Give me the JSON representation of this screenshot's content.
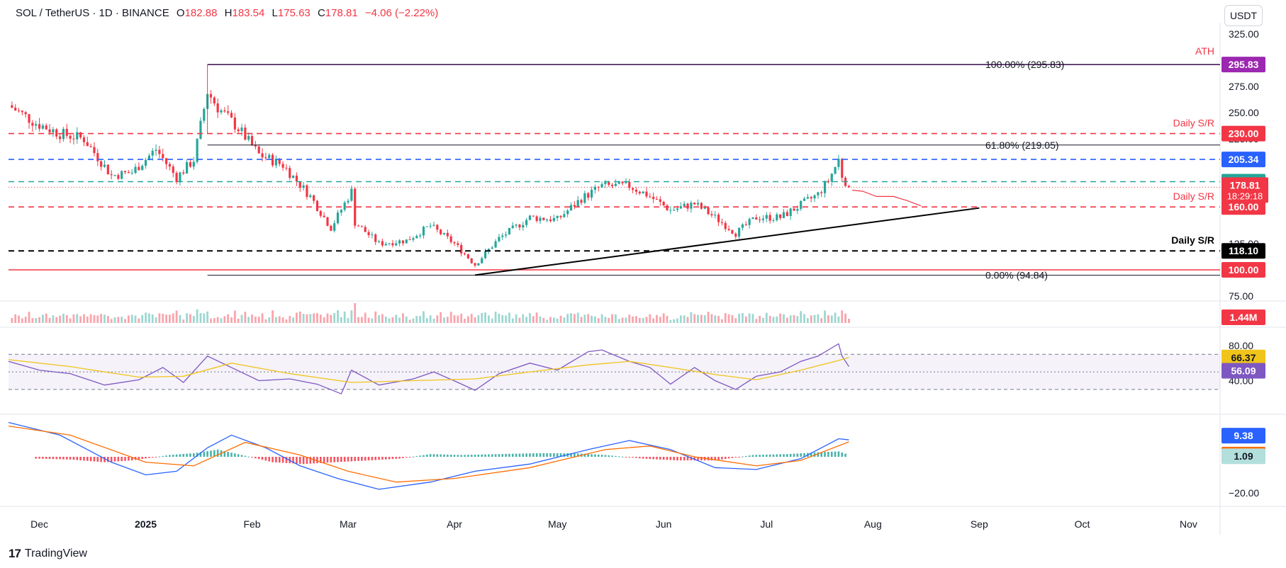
{
  "header": {
    "symbol": "SOL / TetherUS · 1D · BINANCE",
    "o_key": "O",
    "o_val": "182.88",
    "h_key": "H",
    "h_val": "183.54",
    "l_key": "L",
    "l_val": "175.63",
    "c_key": "C",
    "c_val": "178.81",
    "change": "−4.06 (−2.22%)"
  },
  "unit_button": "USDT",
  "footer": {
    "logo_glyph": "17",
    "brand": "TradingView"
  },
  "colors": {
    "up": "#26a69a",
    "down": "#f23645",
    "rsi": "#7e57c2",
    "rsi_ma": "#f0c419",
    "macd": "#2962ff",
    "signal": "#ff6d00",
    "ath": "#9c27b0"
  },
  "chart_data": [
    {
      "type": "candlestick",
      "title": "",
      "x_ticks": [
        "Dec",
        "2025",
        "Feb",
        "Mar",
        "Apr",
        "May",
        "Jun",
        "Jul",
        "Aug",
        "Sep",
        "Oct",
        "Nov"
      ],
      "y_ticks": [
        "325.00",
        "275.00",
        "250.00",
        "225.00",
        "175.00",
        "125.00",
        "75.00"
      ],
      "ylim": [
        75,
        325
      ],
      "x_range": [
        "2024-11-22",
        "2025-11-10"
      ],
      "close_series": [
        {
          "date": "2024-11-22",
          "close": 257
        },
        {
          "date": "2024-11-30",
          "close": 240
        },
        {
          "date": "2024-12-07",
          "close": 230
        },
        {
          "date": "2024-12-14",
          "close": 225
        },
        {
          "date": "2024-12-22",
          "close": 190
        },
        {
          "date": "2024-12-28",
          "close": 193
        },
        {
          "date": "2025-01-04",
          "close": 215
        },
        {
          "date": "2025-01-10",
          "close": 188
        },
        {
          "date": "2025-01-15",
          "close": 205
        },
        {
          "date": "2025-01-19",
          "close": 270
        },
        {
          "date": "2025-01-22",
          "close": 255
        },
        {
          "date": "2025-01-28",
          "close": 235
        },
        {
          "date": "2025-02-03",
          "close": 210
        },
        {
          "date": "2025-02-10",
          "close": 200
        },
        {
          "date": "2025-02-18",
          "close": 170
        },
        {
          "date": "2025-02-24",
          "close": 140
        },
        {
          "date": "2025-03-02",
          "close": 175
        },
        {
          "date": "2025-03-03",
          "close": 145
        },
        {
          "date": "2025-03-10",
          "close": 125
        },
        {
          "date": "2025-03-18",
          "close": 128
        },
        {
          "date": "2025-03-25",
          "close": 142
        },
        {
          "date": "2025-04-01",
          "close": 125
        },
        {
          "date": "2025-04-07",
          "close": 105
        },
        {
          "date": "2025-04-14",
          "close": 130
        },
        {
          "date": "2025-04-23",
          "close": 150
        },
        {
          "date": "2025-05-01",
          "close": 148
        },
        {
          "date": "2025-05-08",
          "close": 168
        },
        {
          "date": "2025-05-14",
          "close": 180
        },
        {
          "date": "2025-05-22",
          "close": 180
        },
        {
          "date": "2025-05-27",
          "close": 172
        },
        {
          "date": "2025-06-03",
          "close": 157
        },
        {
          "date": "2025-06-10",
          "close": 163
        },
        {
          "date": "2025-06-16",
          "close": 150
        },
        {
          "date": "2025-06-22",
          "close": 135
        },
        {
          "date": "2025-06-28",
          "close": 150
        },
        {
          "date": "2025-07-05",
          "close": 150
        },
        {
          "date": "2025-07-11",
          "close": 162
        },
        {
          "date": "2025-07-16",
          "close": 172
        },
        {
          "date": "2025-07-19",
          "close": 185
        },
        {
          "date": "2025-07-22",
          "close": 205
        },
        {
          "date": "2025-07-23",
          "close": 190
        },
        {
          "date": "2025-07-25",
          "close": 178.81
        }
      ],
      "fib_levels": [
        {
          "label": "100.00% (295.83)",
          "value": 295.83
        },
        {
          "label": "61.80% (219.05)",
          "value": 219.05
        },
        {
          "label": "0.00% (94.84)",
          "value": 94.84
        }
      ],
      "horizontal_levels": [
        {
          "value": 295.83,
          "tag": "295.83",
          "label": "ATH",
          "style": "solid",
          "color": "#9c27b0"
        },
        {
          "value": 230.0,
          "tag": "230.00",
          "label": "Daily S/R",
          "style": "dashed",
          "color": "#f23645"
        },
        {
          "value": 205.34,
          "tag": "205.34",
          "label": "",
          "style": "dashed",
          "color": "#2962ff"
        },
        {
          "value": 184.13,
          "tag": "184.13",
          "label": "",
          "style": "dashed",
          "color": "#26a69a"
        },
        {
          "value": 160.0,
          "tag": "160.00",
          "label": "Daily S/R",
          "style": "dashed",
          "color": "#f23645"
        },
        {
          "value": 118.1,
          "tag": "118.10",
          "label": "Daily S/R",
          "style": "dashed",
          "color": "#000000"
        },
        {
          "value": 100.0,
          "tag": "100.00",
          "label": "",
          "style": "solid",
          "color": "#f23645"
        }
      ],
      "last_price": {
        "value": 178.81,
        "tag": "178.81",
        "countdown": "18:29:18"
      },
      "trendline": [
        {
          "date": "2025-04-07",
          "value": 95
        },
        {
          "date": "2025-09-01",
          "value": 159
        }
      ],
      "projection": [
        {
          "date": "2025-07-26",
          "value": 176
        },
        {
          "date": "2025-07-29",
          "value": 175
        },
        {
          "date": "2025-08-02",
          "value": 170
        },
        {
          "date": "2025-08-07",
          "value": 170
        },
        {
          "date": "2025-08-11",
          "value": 166
        },
        {
          "date": "2025-08-15",
          "value": 161
        }
      ]
    },
    {
      "type": "bar",
      "title": "Volume",
      "last_value": "1.44M"
    },
    {
      "type": "line",
      "title": "RSI",
      "y_ticks": [
        "80.00",
        "40.00"
      ],
      "ylim": [
        17,
        88
      ],
      "bands": [
        70,
        50,
        30
      ],
      "series": [
        {
          "name": "RSI",
          "points": [
            {
              "date": "2024-11-22",
              "v": 62
            },
            {
              "date": "2024-12-01",
              "v": 52
            },
            {
              "date": "2024-12-10",
              "v": 48
            },
            {
              "date": "2024-12-20",
              "v": 35
            },
            {
              "date": "2024-12-30",
              "v": 41
            },
            {
              "date": "2025-01-06",
              "v": 55
            },
            {
              "date": "2025-01-12",
              "v": 38
            },
            {
              "date": "2025-01-19",
              "v": 68
            },
            {
              "date": "2025-01-26",
              "v": 55
            },
            {
              "date": "2025-02-03",
              "v": 40
            },
            {
              "date": "2025-02-12",
              "v": 42
            },
            {
              "date": "2025-02-20",
              "v": 36
            },
            {
              "date": "2025-02-27",
              "v": 25
            },
            {
              "date": "2025-03-02",
              "v": 52
            },
            {
              "date": "2025-03-10",
              "v": 35
            },
            {
              "date": "2025-03-20",
              "v": 42
            },
            {
              "date": "2025-03-26",
              "v": 50
            },
            {
              "date": "2025-04-02",
              "v": 38
            },
            {
              "date": "2025-04-07",
              "v": 29
            },
            {
              "date": "2025-04-14",
              "v": 48
            },
            {
              "date": "2025-04-23",
              "v": 60
            },
            {
              "date": "2025-05-01",
              "v": 52
            },
            {
              "date": "2025-05-10",
              "v": 73
            },
            {
              "date": "2025-05-14",
              "v": 75
            },
            {
              "date": "2025-05-22",
              "v": 62
            },
            {
              "date": "2025-05-28",
              "v": 55
            },
            {
              "date": "2025-06-03",
              "v": 36
            },
            {
              "date": "2025-06-10",
              "v": 55
            },
            {
              "date": "2025-06-16",
              "v": 40
            },
            {
              "date": "2025-06-22",
              "v": 30
            },
            {
              "date": "2025-06-28",
              "v": 45
            },
            {
              "date": "2025-07-05",
              "v": 50
            },
            {
              "date": "2025-07-11",
              "v": 62
            },
            {
              "date": "2025-07-16",
              "v": 68
            },
            {
              "date": "2025-07-22",
              "v": 82
            },
            {
              "date": "2025-07-23",
              "v": 68
            },
            {
              "date": "2025-07-25",
              "v": 56.09
            }
          ]
        },
        {
          "name": "RSI-based MA",
          "points": [
            {
              "date": "2024-11-22",
              "v": 64
            },
            {
              "date": "2024-12-10",
              "v": 56
            },
            {
              "date": "2024-12-30",
              "v": 44
            },
            {
              "date": "2025-01-12",
              "v": 45
            },
            {
              "date": "2025-01-26",
              "v": 60
            },
            {
              "date": "2025-02-12",
              "v": 48
            },
            {
              "date": "2025-03-02",
              "v": 38
            },
            {
              "date": "2025-03-20",
              "v": 40
            },
            {
              "date": "2025-04-07",
              "v": 42
            },
            {
              "date": "2025-04-23",
              "v": 50
            },
            {
              "date": "2025-05-10",
              "v": 58
            },
            {
              "date": "2025-05-22",
              "v": 62
            },
            {
              "date": "2025-06-03",
              "v": 55
            },
            {
              "date": "2025-06-16",
              "v": 47
            },
            {
              "date": "2025-06-28",
              "v": 41
            },
            {
              "date": "2025-07-11",
              "v": 52
            },
            {
              "date": "2025-07-22",
              "v": 63
            },
            {
              "date": "2025-07-25",
              "v": 66.37
            }
          ]
        }
      ],
      "tags": [
        {
          "value": 66.37,
          "tag": "66.37"
        },
        {
          "value": 56.09,
          "tag": "56.09"
        }
      ]
    },
    {
      "type": "line",
      "title": "MACD",
      "y_ticks": [
        "−20.00"
      ],
      "ylim": [
        -22,
        20
      ],
      "series": [
        {
          "name": "MACD",
          "points": [
            {
              "date": "2024-11-22",
              "v": 19
            },
            {
              "date": "2024-12-07",
              "v": 12
            },
            {
              "date": "2024-12-22",
              "v": -3
            },
            {
              "date": "2025-01-01",
              "v": -10
            },
            {
              "date": "2025-01-10",
              "v": -8
            },
            {
              "date": "2025-01-19",
              "v": 5
            },
            {
              "date": "2025-01-26",
              "v": 12
            },
            {
              "date": "2025-02-05",
              "v": 5
            },
            {
              "date": "2025-02-15",
              "v": -5
            },
            {
              "date": "2025-02-26",
              "v": -12
            },
            {
              "date": "2025-03-10",
              "v": -18
            },
            {
              "date": "2025-03-25",
              "v": -14
            },
            {
              "date": "2025-04-07",
              "v": -8
            },
            {
              "date": "2025-04-23",
              "v": -4
            },
            {
              "date": "2025-05-10",
              "v": 4
            },
            {
              "date": "2025-05-22",
              "v": 9
            },
            {
              "date": "2025-06-03",
              "v": 4
            },
            {
              "date": "2025-06-16",
              "v": -6
            },
            {
              "date": "2025-06-28",
              "v": -7
            },
            {
              "date": "2025-07-11",
              "v": -1
            },
            {
              "date": "2025-07-22",
              "v": 10
            },
            {
              "date": "2025-07-25",
              "v": 9.38
            }
          ]
        },
        {
          "name": "Signal",
          "points": [
            {
              "date": "2024-11-22",
              "v": 17
            },
            {
              "date": "2024-12-10",
              "v": 12
            },
            {
              "date": "2025-01-01",
              "v": -3
            },
            {
              "date": "2025-01-15",
              "v": -5
            },
            {
              "date": "2025-01-30",
              "v": 8
            },
            {
              "date": "2025-02-15",
              "v": 1
            },
            {
              "date": "2025-03-01",
              "v": -8
            },
            {
              "date": "2025-03-15",
              "v": -14
            },
            {
              "date": "2025-04-01",
              "v": -12
            },
            {
              "date": "2025-04-23",
              "v": -6
            },
            {
              "date": "2025-05-15",
              "v": 4
            },
            {
              "date": "2025-05-28",
              "v": 6
            },
            {
              "date": "2025-06-10",
              "v": 0
            },
            {
              "date": "2025-06-28",
              "v": -5
            },
            {
              "date": "2025-07-11",
              "v": -2
            },
            {
              "date": "2025-07-25",
              "v": 8.3
            }
          ]
        }
      ],
      "histogram": [
        {
          "date": "2024-11-30",
          "v": -1
        },
        {
          "date": "2024-12-10",
          "v": -1.5
        },
        {
          "date": "2024-12-20",
          "v": -3
        },
        {
          "date": "2024-12-28",
          "v": -2
        },
        {
          "date": "2025-01-08",
          "v": 1
        },
        {
          "date": "2025-01-15",
          "v": 2
        },
        {
          "date": "2025-01-22",
          "v": 4
        },
        {
          "date": "2025-01-29",
          "v": 1
        },
        {
          "date": "2025-02-07",
          "v": -3
        },
        {
          "date": "2025-02-16",
          "v": -4
        },
        {
          "date": "2025-02-25",
          "v": -3
        },
        {
          "date": "2025-03-07",
          "v": -2
        },
        {
          "date": "2025-03-16",
          "v": -1
        },
        {
          "date": "2025-03-25",
          "v": 1.5
        },
        {
          "date": "2025-04-03",
          "v": 1
        },
        {
          "date": "2025-04-14",
          "v": 1.5
        },
        {
          "date": "2025-04-25",
          "v": 2
        },
        {
          "date": "2025-05-06",
          "v": 2
        },
        {
          "date": "2025-05-15",
          "v": 1
        },
        {
          "date": "2025-05-26",
          "v": -1
        },
        {
          "date": "2025-06-05",
          "v": -2
        },
        {
          "date": "2025-06-16",
          "v": -2
        },
        {
          "date": "2025-06-27",
          "v": 1
        },
        {
          "date": "2025-07-07",
          "v": 1.5
        },
        {
          "date": "2025-07-16",
          "v": 2.5
        },
        {
          "date": "2025-07-22",
          "v": 3
        },
        {
          "date": "2025-07-25",
          "v": 1.09
        }
      ],
      "tags": [
        {
          "value": 9.38,
          "tag": "9.38"
        },
        {
          "value": 8.3,
          "tag": "8.30"
        },
        {
          "value": 1.09,
          "tag": "1.09"
        }
      ]
    }
  ]
}
